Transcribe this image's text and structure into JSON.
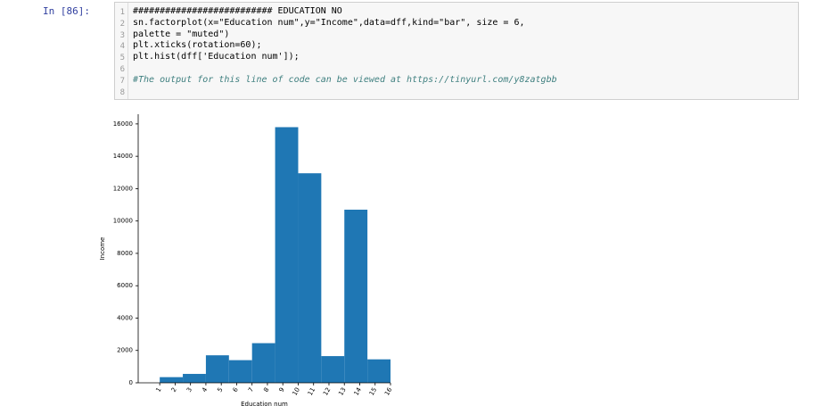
{
  "prompt": "In [86]:",
  "code": {
    "line_numbers": [
      1,
      2,
      3,
      4,
      5,
      6,
      7,
      8
    ],
    "lines": [
      "########################## EDUCATION NO",
      "sn.factorplot(x=\"Education num\",y=\"Income\",data=dff,kind=\"bar\", size = 6,",
      "palette = \"muted\")",
      "plt.xticks(rotation=60);",
      "plt.hist(dff['Education num']);",
      null,
      "#The output for this line of code can be viewed at https://tinyurl.com/y8zatgbb",
      null
    ]
  },
  "chart_data": {
    "type": "histogram",
    "xlabel": "Education num",
    "ylabel": "Income",
    "bins": [
      1,
      2.5,
      4,
      5.5,
      7,
      8.5,
      10,
      11.5,
      13,
      14.5,
      16
    ],
    "values": [
      350,
      550,
      1700,
      1400,
      2450,
      15800,
      12950,
      1650,
      10700,
      1450
    ],
    "color": "#1f77b4",
    "xlim": [
      -0.4,
      16
    ],
    "xticks": [
      1,
      2,
      3,
      4,
      5,
      6,
      7,
      8,
      9,
      10,
      11,
      12,
      13,
      14,
      15,
      16
    ],
    "ylim": [
      0,
      16600
    ],
    "yticks": [
      0,
      2000,
      4000,
      6000,
      8000,
      10000,
      12000,
      14000,
      16000
    ]
  }
}
